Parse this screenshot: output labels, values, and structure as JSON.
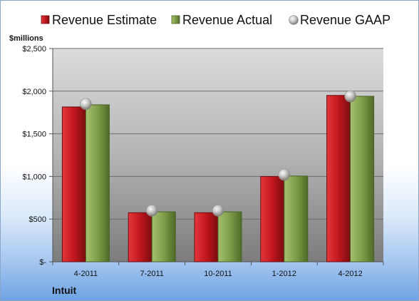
{
  "company": "Intuit",
  "chart_data": {
    "type": "bar",
    "title": "",
    "unit_label": "$millions",
    "categories": [
      "4-2011",
      "7-2011",
      "10-2011",
      "1-2012",
      "4-2012"
    ],
    "series": [
      {
        "name": "Revenue Estimate",
        "kind": "bar",
        "color": "#c0161d",
        "values": [
          1815,
          575,
          575,
          1000,
          1950
        ]
      },
      {
        "name": "Revenue Actual",
        "kind": "bar",
        "color": "#7f9e49",
        "values": [
          1840,
          585,
          585,
          1005,
          1940
        ]
      },
      {
        "name": "Revenue GAAP",
        "kind": "marker",
        "color": "#b8b8b8",
        "values": [
          1850,
          600,
          600,
          1020,
          1940
        ]
      }
    ],
    "ylim": [
      0,
      2500
    ],
    "yticks": [
      0,
      500,
      1000,
      1500,
      2000,
      2500
    ],
    "ytick_labels": [
      "$-",
      "$500",
      "$1,000",
      "$1,500",
      "$2,000",
      "$2,500"
    ],
    "grid": true,
    "legend_position": "top"
  }
}
